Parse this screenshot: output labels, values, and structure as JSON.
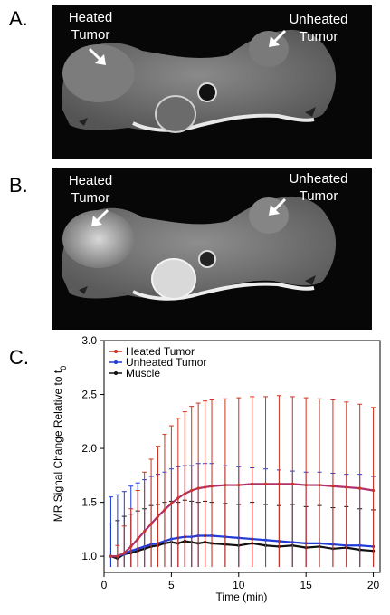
{
  "panels": {
    "a": {
      "letter": "A.",
      "label_left": "Heated\nTumor",
      "label_right": "Unheated\nTumor"
    },
    "b": {
      "letter": "B.",
      "label_left": "Heated\nTumor",
      "label_right": "Unheated\nTumor"
    },
    "c": {
      "letter": "C."
    }
  },
  "chart_data": {
    "type": "line",
    "xlabel": "Time (min)",
    "ylabel": "MR Signal Change Relative to t0",
    "ylabel_main": "MR Signal Change Relative to t",
    "ylabel_sub": "0",
    "xlim": [
      0,
      20.5
    ],
    "ylim": [
      0.85,
      3.0
    ],
    "xticks": [
      0,
      5,
      10,
      15,
      20
    ],
    "yticks": [
      1.0,
      1.5,
      2.0,
      2.5,
      3.0
    ],
    "ytick_labels": [
      "1.0",
      "1.5",
      "2.0",
      "2.5",
      "3.0"
    ],
    "grid": false,
    "legend_position": "top-left",
    "series": [
      {
        "name": "Heated Tumor",
        "color": "#d0341e",
        "line_color": "#b0306a",
        "x": [
          0.5,
          1,
          1.5,
          2,
          2.5,
          3,
          3.5,
          4,
          4.5,
          5,
          5.5,
          6,
          6.5,
          7,
          7.5,
          8,
          9,
          10,
          11,
          12,
          13,
          14,
          15,
          16,
          17,
          18,
          19,
          20
        ],
        "y": [
          1.0,
          1.0,
          1.03,
          1.09,
          1.16,
          1.23,
          1.3,
          1.37,
          1.43,
          1.49,
          1.54,
          1.58,
          1.61,
          1.63,
          1.64,
          1.65,
          1.66,
          1.66,
          1.67,
          1.67,
          1.67,
          1.67,
          1.66,
          1.66,
          1.65,
          1.64,
          1.63,
          1.61
        ],
        "err": [
          0.0,
          0.1,
          0.25,
          0.35,
          0.45,
          0.55,
          0.6,
          0.65,
          0.7,
          0.72,
          0.74,
          0.76,
          0.78,
          0.79,
          0.8,
          0.8,
          0.8,
          0.81,
          0.81,
          0.81,
          0.82,
          0.81,
          0.81,
          0.8,
          0.8,
          0.79,
          0.78,
          0.77
        ]
      },
      {
        "name": "Unheated Tumor",
        "color": "#1f3bd8",
        "x": [
          0.5,
          1,
          1.5,
          2,
          2.5,
          3,
          3.5,
          4,
          4.5,
          5,
          5.5,
          6,
          6.5,
          7,
          7.5,
          8,
          9,
          10,
          11,
          12,
          13,
          14,
          15,
          16,
          17,
          18,
          19,
          20
        ],
        "y": [
          1.0,
          1.0,
          1.02,
          1.05,
          1.07,
          1.09,
          1.11,
          1.12,
          1.14,
          1.16,
          1.17,
          1.18,
          1.18,
          1.19,
          1.19,
          1.19,
          1.18,
          1.17,
          1.16,
          1.15,
          1.14,
          1.13,
          1.12,
          1.12,
          1.11,
          1.1,
          1.1,
          1.09
        ],
        "err": [
          0.55,
          0.57,
          0.58,
          0.6,
          0.61,
          0.62,
          0.63,
          0.64,
          0.64,
          0.65,
          0.66,
          0.66,
          0.66,
          0.67,
          0.67,
          0.67,
          0.66,
          0.66,
          0.66,
          0.66,
          0.66,
          0.66,
          0.66,
          0.66,
          0.66,
          0.66,
          0.66,
          0.65
        ]
      },
      {
        "name": "Muscle",
        "color": "#111111",
        "x": [
          0.5,
          1,
          1.5,
          2,
          2.5,
          3,
          3.5,
          4,
          4.5,
          5,
          5.5,
          6,
          6.5,
          7,
          7.5,
          8,
          9,
          10,
          11,
          12,
          13,
          14,
          15,
          16,
          17,
          18,
          19,
          20
        ],
        "y": [
          1.0,
          0.98,
          1.02,
          1.03,
          1.05,
          1.07,
          1.09,
          1.1,
          1.12,
          1.13,
          1.12,
          1.14,
          1.13,
          1.12,
          1.13,
          1.12,
          1.11,
          1.1,
          1.12,
          1.1,
          1.09,
          1.1,
          1.08,
          1.09,
          1.07,
          1.08,
          1.06,
          1.05
        ],
        "err": [
          0.3,
          0.35,
          0.35,
          0.36,
          0.37,
          0.37,
          0.38,
          0.38,
          0.38,
          0.38,
          0.38,
          0.38,
          0.38,
          0.38,
          0.38,
          0.38,
          0.38,
          0.38,
          0.38,
          0.38,
          0.38,
          0.38,
          0.38,
          0.38,
          0.38,
          0.38,
          0.38,
          0.38
        ]
      }
    ]
  }
}
